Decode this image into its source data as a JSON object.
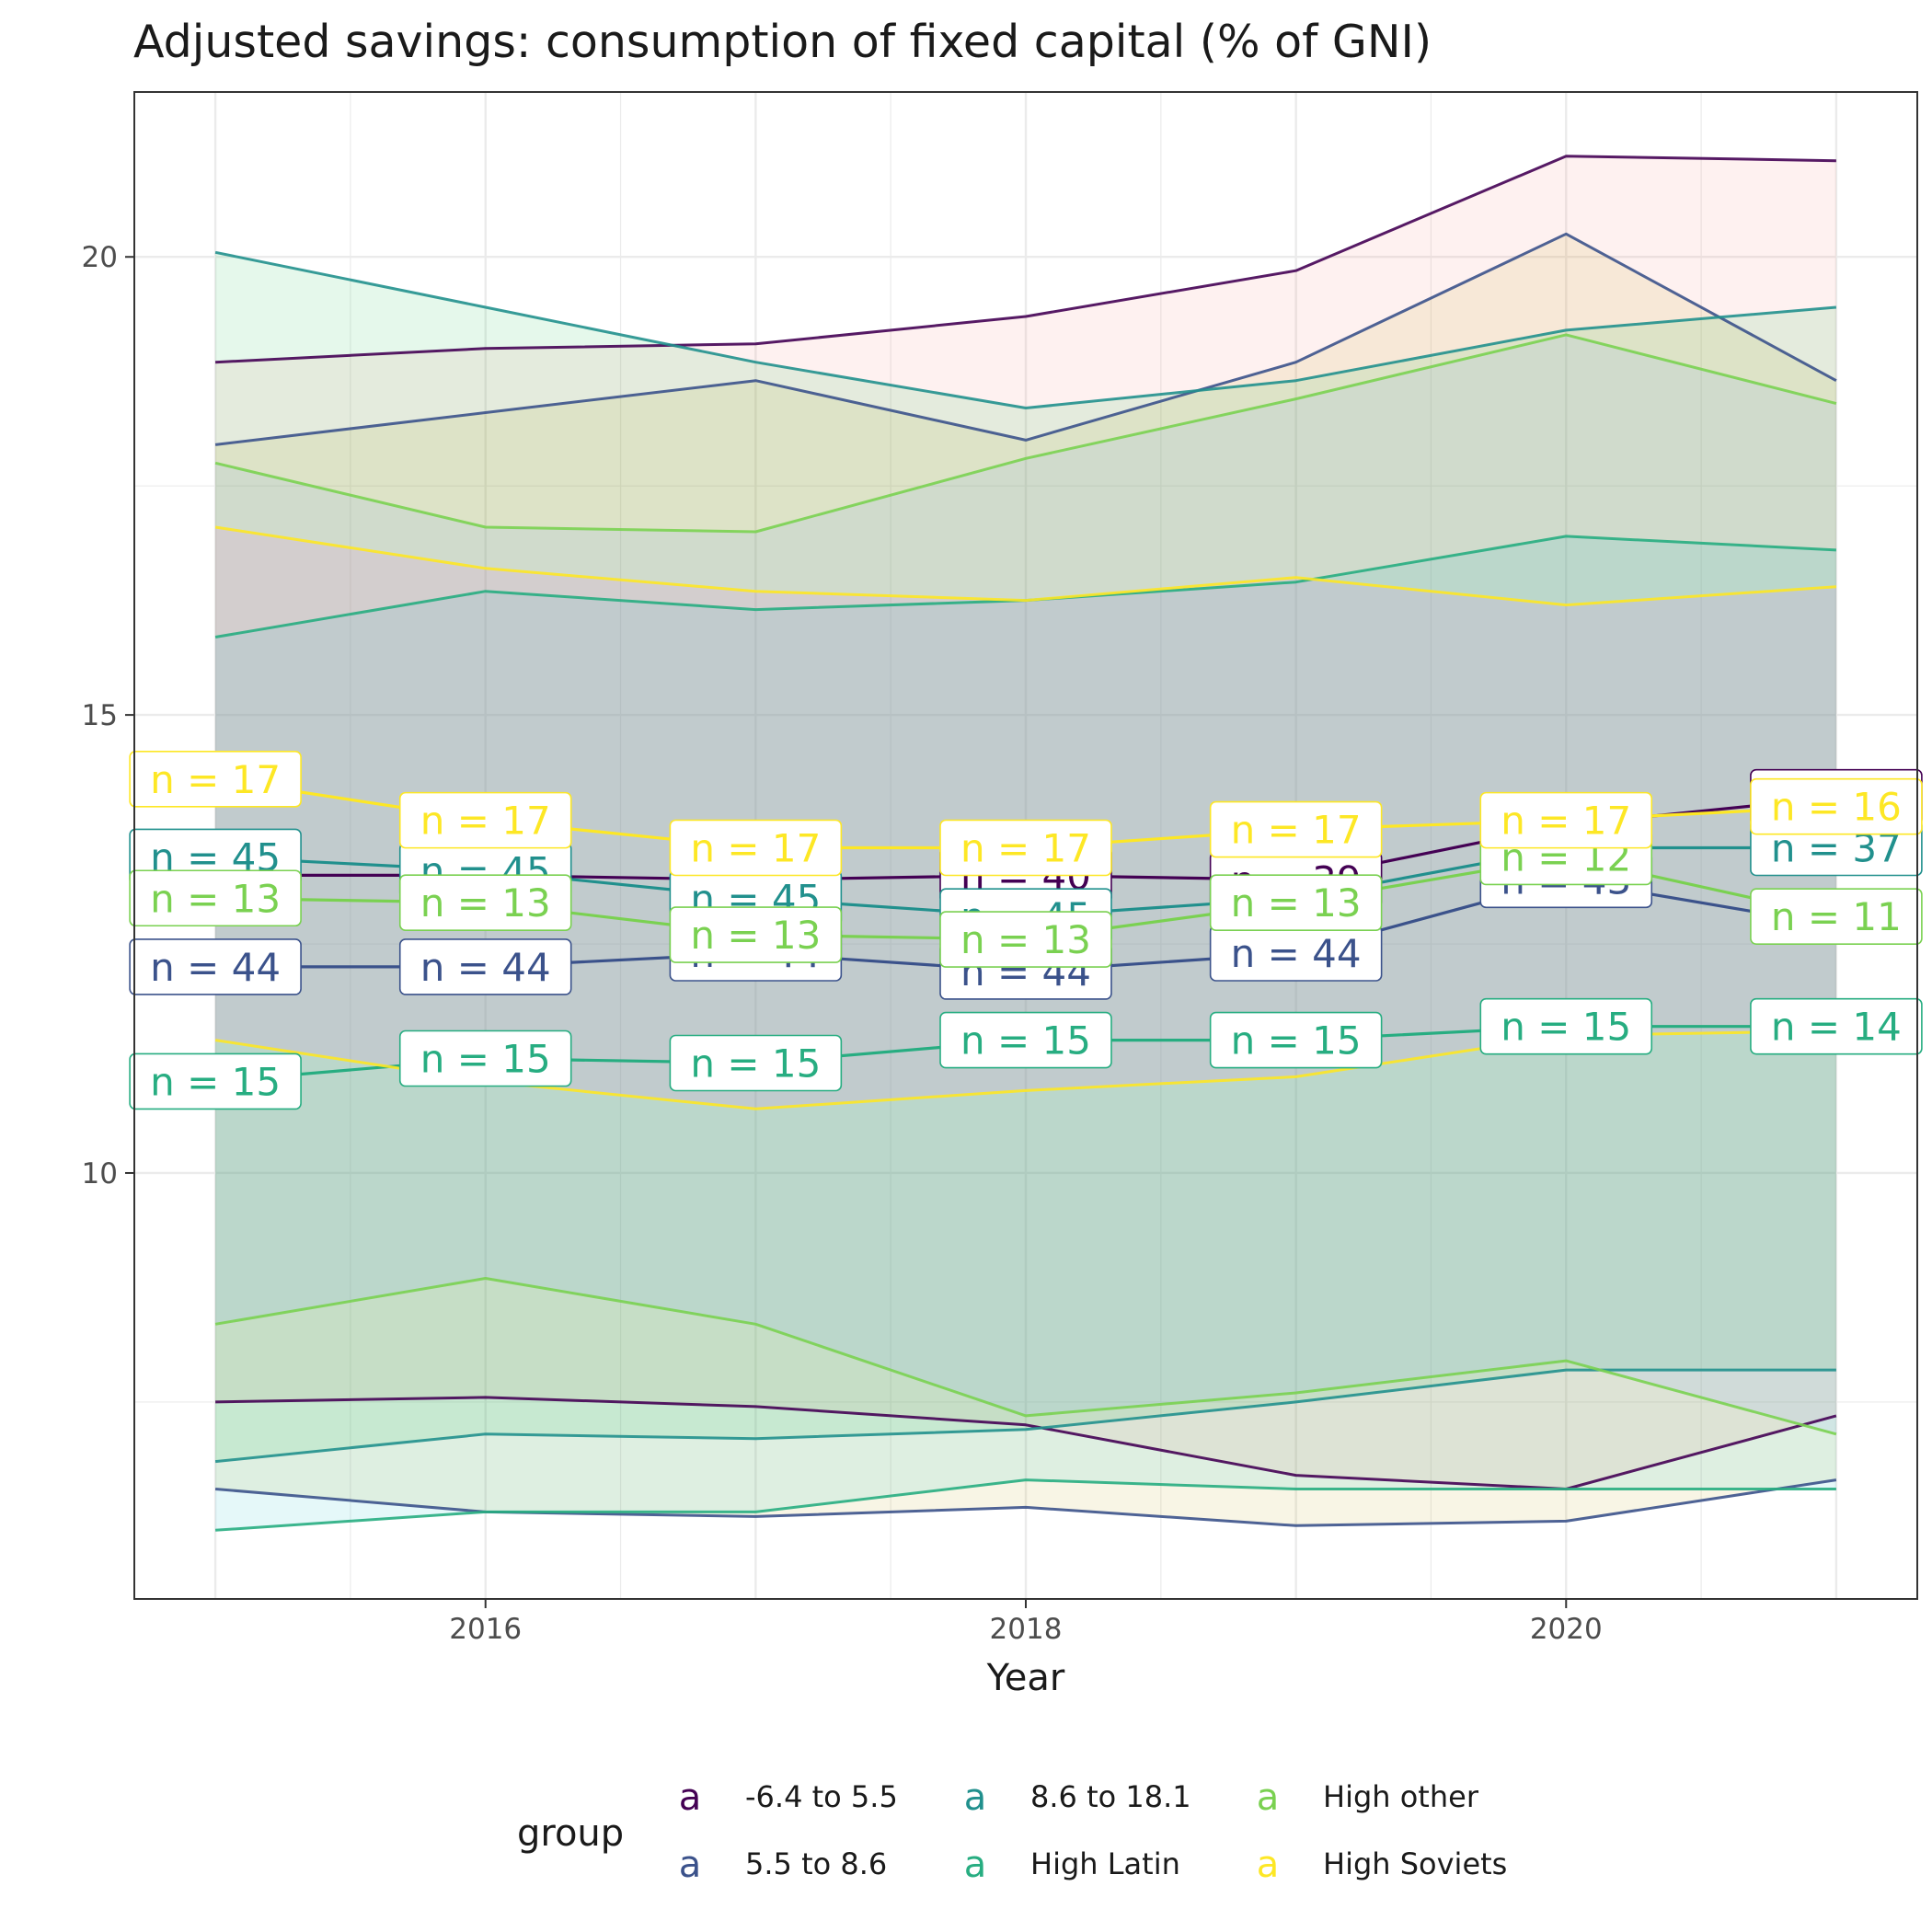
{
  "chart_data": {
    "type": "line",
    "title": "Adjusted savings: consumption of fixed capital (% of GNI)",
    "xlabel": "Year",
    "ylabel": "",
    "x": [
      2015,
      2016,
      2017,
      2018,
      2019,
      2020,
      2021
    ],
    "x_ticks": [
      "2016",
      "2018",
      "2020"
    ],
    "y_ticks": [
      "10",
      "15",
      "20"
    ],
    "xlim": [
      2014.7,
      2021.3
    ],
    "ylim": [
      5.35,
      21.8
    ],
    "grid": true,
    "legend_title": "group",
    "legend_position": "bottom",
    "legend_key_glyph": "a",
    "series": [
      {
        "name": "-6.4 to 5.5",
        "color": "#440154",
        "mean": [
          13.25,
          13.25,
          13.2,
          13.25,
          13.2,
          13.8,
          14.1
        ],
        "upper": [
          18.85,
          19.0,
          19.05,
          19.35,
          19.85,
          21.1,
          21.05
        ],
        "lower": [
          7.5,
          7.55,
          7.45,
          7.25,
          6.7,
          6.55,
          7.35
        ],
        "n": [
          null,
          null,
          null,
          40,
          39,
          null,
          35
        ],
        "n_labels": [
          "",
          "",
          "",
          "n = 40",
          "n = 39",
          "",
          "n = 35"
        ]
      },
      {
        "name": "5.5 to 8.6",
        "color": "#3b528b",
        "mean": [
          12.25,
          12.25,
          12.4,
          12.2,
          12.4,
          13.2,
          12.7
        ],
        "upper": [
          17.95,
          18.3,
          18.65,
          18.0,
          18.85,
          20.25,
          18.65
        ],
        "lower": [
          6.55,
          6.3,
          6.25,
          6.35,
          6.15,
          6.2,
          6.65
        ],
        "n": [
          44,
          44,
          44,
          44,
          44,
          43,
          null
        ],
        "n_labels": [
          "n = 44",
          "n = 44",
          "n = 44",
          "n = 44",
          "n = 44",
          "n = 43",
          ""
        ]
      },
      {
        "name": "8.6 to 18.1",
        "color": "#21908d",
        "mean": [
          13.45,
          13.3,
          13.0,
          12.8,
          13.0,
          13.55,
          13.55
        ],
        "upper": [
          20.05,
          19.45,
          18.85,
          18.35,
          18.65,
          19.2,
          19.45
        ],
        "lower": [
          6.85,
          7.15,
          7.1,
          7.2,
          7.5,
          7.85,
          7.85
        ],
        "n": [
          45,
          45,
          45,
          45,
          null,
          null,
          37
        ],
        "n_labels": [
          "n = 45",
          "n = 45",
          "n = 45",
          "n = 45",
          "",
          "",
          "n = 37"
        ]
      },
      {
        "name": "High Latin",
        "color": "#27ad81",
        "mean": [
          11.0,
          11.25,
          11.2,
          11.45,
          11.45,
          11.6,
          11.6
        ],
        "upper": [
          15.85,
          16.35,
          16.15,
          16.25,
          16.45,
          16.95,
          16.8
        ],
        "lower": [
          6.1,
          6.3,
          6.3,
          6.65,
          6.55,
          6.55,
          6.55
        ],
        "n": [
          15,
          15,
          15,
          15,
          15,
          15,
          14
        ],
        "n_labels": [
          "n = 15",
          "n = 15",
          "n = 15",
          "n = 15",
          "n = 15",
          "n = 15",
          "n = 14"
        ]
      },
      {
        "name": "High other",
        "color": "#7ad151",
        "mean": [
          13.0,
          12.95,
          12.6,
          12.55,
          12.95,
          13.45,
          12.8
        ],
        "upper": [
          17.75,
          17.05,
          17.0,
          17.8,
          18.45,
          19.15,
          18.4
        ],
        "lower": [
          8.35,
          8.85,
          8.35,
          7.35,
          7.6,
          7.95,
          7.15
        ],
        "n": [
          13,
          13,
          13,
          13,
          13,
          12,
          11
        ],
        "n_labels": [
          "n = 13",
          "n = 13",
          "n = 13",
          "n = 13",
          "n = 13",
          "n = 12",
          "n = 11"
        ]
      },
      {
        "name": "High Soviets",
        "color": "#fde725",
        "mean": [
          14.3,
          13.85,
          13.55,
          13.55,
          13.75,
          13.85,
          14.0
        ],
        "upper": [
          17.05,
          16.6,
          16.35,
          16.25,
          16.5,
          16.2,
          16.4
        ],
        "lower": [
          11.45,
          11.0,
          10.7,
          10.9,
          11.05,
          11.5,
          11.55
        ],
        "n": [
          17,
          17,
          17,
          17,
          17,
          17,
          16
        ],
        "n_labels": [
          "n = 17",
          "n = 17",
          "n = 17",
          "n = 17",
          "n = 17",
          "n = 17",
          "n = 16"
        ]
      }
    ]
  }
}
